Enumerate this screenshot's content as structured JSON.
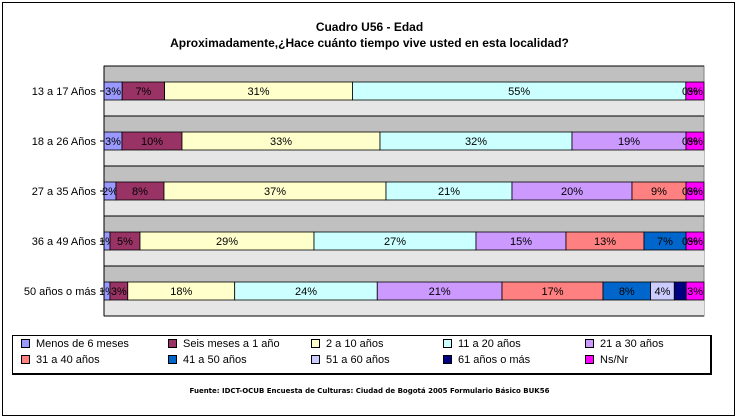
{
  "chart_data": {
    "type": "bar",
    "orientation": "horizontal",
    "stacked": "percent",
    "title": "Cuadro U56 - Edad",
    "subtitle": "Aproximadamente,¿Hace cuánto tiempo vive usted en esta localidad?",
    "categories": [
      "13 a 17 Años",
      "18 a 26 Años",
      "27 a 35 Años",
      "36 a 49 Años",
      "50 años o más"
    ],
    "series": [
      {
        "name": "Menos de 6 meses",
        "color": "#9999ff",
        "values": [
          3,
          3,
          2,
          1,
          1
        ],
        "labels": [
          "3%",
          "3%",
          "2%",
          "1%",
          "1%"
        ]
      },
      {
        "name": "Seis meses a 1 año",
        "color": "#993366",
        "values": [
          7,
          10,
          8,
          5,
          3
        ],
        "labels": [
          "7%",
          "10%",
          "8%",
          "5%",
          "3%"
        ]
      },
      {
        "name": "2 a 10 años",
        "color": "#ffffcc",
        "values": [
          31,
          33,
          37,
          29,
          18
        ],
        "labels": [
          "31%",
          "33%",
          "37%",
          "29%",
          "18%"
        ]
      },
      {
        "name": "11 a 20 años",
        "color": "#ccffff",
        "values": [
          55,
          32,
          21,
          27,
          24
        ],
        "labels": [
          "55%",
          "32%",
          "21%",
          "27%",
          "24%"
        ]
      },
      {
        "name": "21 a 30 años",
        "color": "#cc99ff",
        "values": [
          0,
          19,
          20,
          15,
          21
        ],
        "labels": [
          "",
          "19%",
          "20%",
          "15%",
          "21%"
        ]
      },
      {
        "name": "31 a 40 años",
        "color": "#ff8080",
        "values": [
          0,
          0,
          9,
          13,
          17
        ],
        "labels": [
          "",
          "",
          "9%",
          "13%",
          "17%"
        ]
      },
      {
        "name": "41 a 50 años",
        "color": "#0066cc",
        "values": [
          0,
          0,
          0,
          7,
          8
        ],
        "labels": [
          "",
          "",
          "",
          "7%",
          "8%"
        ]
      },
      {
        "name": "51 a 60 años",
        "color": "#ccccff",
        "values": [
          0,
          0,
          0,
          0,
          4
        ],
        "labels": [
          "",
          "",
          "",
          "",
          "4%"
        ]
      },
      {
        "name": "61 años o más",
        "color": "#000080",
        "values": [
          0,
          0,
          0,
          0,
          2
        ],
        "labels": [
          "",
          "",
          "",
          "",
          ""
        ]
      },
      {
        "name": "Ns/Nr",
        "color": "#ff00ff",
        "values": [
          3,
          3,
          3,
          3,
          3
        ],
        "labels": [
          "3%",
          "3%",
          "3%",
          "3%",
          "3%"
        ]
      }
    ],
    "end_labels": [
      "0%",
      "0%",
      "0%",
      "0%",
      ""
    ],
    "grid": true,
    "legend_position": "bottom",
    "plot_background": "#c0c0c0",
    "gridline_color": "#000000"
  },
  "source": "Fuente: IDCT-OCUB Encuesta de Culturas: Ciudad de Bogotá 2005 Formulario Básico BUK56"
}
